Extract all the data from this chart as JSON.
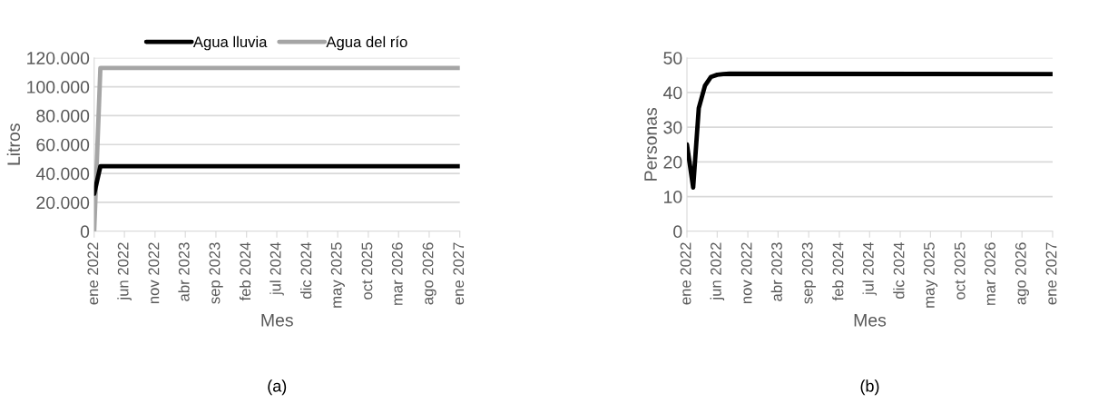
{
  "chart_data": [
    {
      "type": "line",
      "xlabel": "Mes",
      "ylabel": "Litros",
      "grid": "y",
      "legend": "top",
      "line_style": "solid",
      "marker": "none",
      "annotations": [
        "(a)"
      ],
      "xlim": [
        "2022-01",
        "2027-01"
      ],
      "xticks": [
        {
          "value": "2022-01",
          "label": "ene 2022"
        },
        {
          "value": "2022-06",
          "label": "jun 2022"
        },
        {
          "value": "2022-11",
          "label": "nov 2022"
        },
        {
          "value": "2023-04",
          "label": "abr 2023"
        },
        {
          "value": "2023-09",
          "label": "sep 2023"
        },
        {
          "value": "2024-02",
          "label": "feb 2024"
        },
        {
          "value": "2024-07",
          "label": "jul 2024"
        },
        {
          "value": "2024-12",
          "label": "dic 2024"
        },
        {
          "value": "2025-05",
          "label": "may 2025"
        },
        {
          "value": "2025-10",
          "label": "oct 2025"
        },
        {
          "value": "2026-03",
          "label": "mar 2026"
        },
        {
          "value": "2026-08",
          "label": "ago 2026"
        },
        {
          "value": "2027-01",
          "label": "ene 2027"
        }
      ],
      "ylim": [
        0,
        120000
      ],
      "yticks": [
        {
          "value": 0,
          "label": "0"
        },
        {
          "value": 20000,
          "label": "20.000"
        },
        {
          "value": 40000,
          "label": "40.000"
        },
        {
          "value": 60000,
          "label": "60.000"
        },
        {
          "value": 80000,
          "label": "80.000"
        },
        {
          "value": 100000,
          "label": "100.000"
        },
        {
          "value": 120000,
          "label": "120.000"
        }
      ],
      "series": [
        {
          "name": "Agua lluvia",
          "color": "#000000",
          "x": [
            "2022-01",
            "2022-02",
            "2027-01"
          ],
          "values": [
            26000,
            45000,
            45000
          ]
        },
        {
          "name": "Agua del río",
          "color": "#a5a5a5",
          "x": [
            "2022-01",
            "2022-02",
            "2027-01"
          ],
          "values": [
            0,
            113000,
            113000
          ]
        }
      ]
    },
    {
      "type": "line",
      "xlabel": "Mes",
      "ylabel": "Personas",
      "grid": "y",
      "line_style": "solid",
      "marker": "none",
      "annotations": [
        "(b)"
      ],
      "xlim": [
        "2022-01",
        "2027-01"
      ],
      "xticks": [
        {
          "value": "2022-01",
          "label": "ene 2022"
        },
        {
          "value": "2022-06",
          "label": "jun 2022"
        },
        {
          "value": "2022-11",
          "label": "nov 2022"
        },
        {
          "value": "2023-04",
          "label": "abr 2023"
        },
        {
          "value": "2023-09",
          "label": "sep 2023"
        },
        {
          "value": "2024-02",
          "label": "feb 2024"
        },
        {
          "value": "2024-07",
          "label": "jul 2024"
        },
        {
          "value": "2024-12",
          "label": "dic 2024"
        },
        {
          "value": "2025-05",
          "label": "may 2025"
        },
        {
          "value": "2025-10",
          "label": "oct 2025"
        },
        {
          "value": "2026-03",
          "label": "mar 2026"
        },
        {
          "value": "2026-08",
          "label": "ago 2026"
        },
        {
          "value": "2027-01",
          "label": "ene 2027"
        }
      ],
      "ylim": [
        0,
        50
      ],
      "yticks": [
        0,
        10,
        20,
        30,
        40,
        50
      ],
      "series": [
        {
          "color": "#000000",
          "x": [
            "2022-01",
            "2022-02",
            "2022-03",
            "2022-04",
            "2022-05",
            "2022-06",
            "2022-07",
            "2022-08",
            "2027-01"
          ],
          "values": [
            25,
            12.6,
            35.5,
            42,
            44.5,
            45.1,
            45.3,
            45.4,
            45.3
          ]
        }
      ]
    }
  ]
}
